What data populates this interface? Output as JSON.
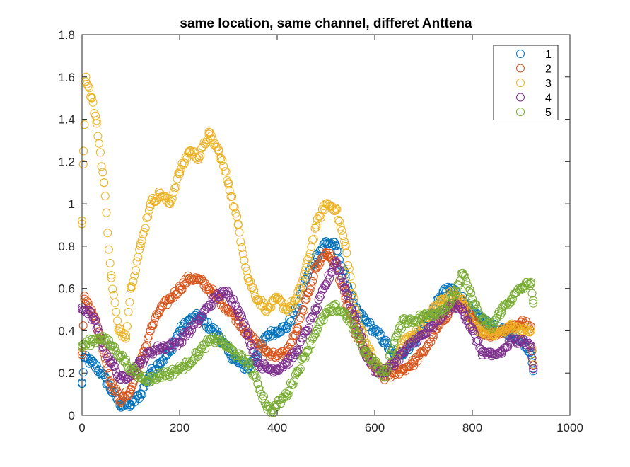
{
  "chart_data": {
    "type": "scatter",
    "title": "same location, same channel, differet Anttena",
    "xlabel": "",
    "ylabel": "",
    "xlim": [
      0,
      1000
    ],
    "ylim": [
      0,
      1.8
    ],
    "xticks": [
      0,
      200,
      400,
      600,
      800,
      1000
    ],
    "yticks": [
      0,
      0.2,
      0.4,
      0.6,
      0.8,
      1,
      1.2,
      1.4,
      1.6,
      1.8
    ],
    "xtick_labels": [
      "0",
      "200",
      "400",
      "600",
      "800",
      "1000"
    ],
    "ytick_labels": [
      "0",
      "0.2",
      "0.4",
      "0.6",
      "0.8",
      "1",
      "1.2",
      "1.4",
      "1.6",
      "1.8"
    ],
    "marker": "open-circle",
    "grid": false,
    "legend_position": "top-right",
    "series": [
      {
        "name": "1",
        "color": "#0072BD",
        "keypoints": [
          [
            0,
            0.15
          ],
          [
            5,
            0.27
          ],
          [
            20,
            0.25
          ],
          [
            40,
            0.2
          ],
          [
            60,
            0.12
          ],
          [
            80,
            0.05
          ],
          [
            100,
            0.05
          ],
          [
            120,
            0.1
          ],
          [
            140,
            0.2
          ],
          [
            160,
            0.25
          ],
          [
            180,
            0.3
          ],
          [
            200,
            0.4
          ],
          [
            220,
            0.45
          ],
          [
            240,
            0.47
          ],
          [
            260,
            0.42
          ],
          [
            280,
            0.38
          ],
          [
            300,
            0.3
          ],
          [
            320,
            0.25
          ],
          [
            340,
            0.22
          ],
          [
            360,
            0.3
          ],
          [
            380,
            0.38
          ],
          [
            400,
            0.4
          ],
          [
            420,
            0.42
          ],
          [
            440,
            0.5
          ],
          [
            460,
            0.65
          ],
          [
            480,
            0.75
          ],
          [
            500,
            0.82
          ],
          [
            520,
            0.8
          ],
          [
            540,
            0.65
          ],
          [
            560,
            0.5
          ],
          [
            580,
            0.45
          ],
          [
            600,
            0.4
          ],
          [
            620,
            0.35
          ],
          [
            640,
            0.28
          ],
          [
            660,
            0.3
          ],
          [
            680,
            0.35
          ],
          [
            700,
            0.42
          ],
          [
            720,
            0.5
          ],
          [
            740,
            0.58
          ],
          [
            760,
            0.6
          ],
          [
            780,
            0.55
          ],
          [
            800,
            0.48
          ],
          [
            820,
            0.45
          ],
          [
            840,
            0.42
          ],
          [
            860,
            0.4
          ],
          [
            880,
            0.38
          ],
          [
            900,
            0.36
          ],
          [
            920,
            0.3
          ],
          [
            925,
            0.21
          ]
        ]
      },
      {
        "name": "2",
        "color": "#D95319",
        "keypoints": [
          [
            0,
            0.3
          ],
          [
            5,
            0.55
          ],
          [
            20,
            0.5
          ],
          [
            40,
            0.35
          ],
          [
            60,
            0.15
          ],
          [
            80,
            0.07
          ],
          [
            100,
            0.12
          ],
          [
            120,
            0.25
          ],
          [
            140,
            0.4
          ],
          [
            160,
            0.5
          ],
          [
            180,
            0.55
          ],
          [
            200,
            0.6
          ],
          [
            220,
            0.65
          ],
          [
            240,
            0.64
          ],
          [
            260,
            0.6
          ],
          [
            280,
            0.55
          ],
          [
            300,
            0.5
          ],
          [
            320,
            0.45
          ],
          [
            340,
            0.38
          ],
          [
            360,
            0.34
          ],
          [
            380,
            0.3
          ],
          [
            400,
            0.28
          ],
          [
            420,
            0.3
          ],
          [
            440,
            0.4
          ],
          [
            460,
            0.55
          ],
          [
            480,
            0.7
          ],
          [
            500,
            0.77
          ],
          [
            520,
            0.72
          ],
          [
            540,
            0.55
          ],
          [
            560,
            0.4
          ],
          [
            580,
            0.3
          ],
          [
            600,
            0.22
          ],
          [
            620,
            0.18
          ],
          [
            640,
            0.2
          ],
          [
            660,
            0.22
          ],
          [
            680,
            0.25
          ],
          [
            700,
            0.3
          ],
          [
            720,
            0.38
          ],
          [
            740,
            0.45
          ],
          [
            760,
            0.52
          ],
          [
            780,
            0.52
          ],
          [
            800,
            0.45
          ],
          [
            820,
            0.4
          ],
          [
            840,
            0.38
          ],
          [
            860,
            0.4
          ],
          [
            880,
            0.42
          ],
          [
            900,
            0.44
          ],
          [
            920,
            0.42
          ],
          [
            925,
            0.22
          ]
        ]
      },
      {
        "name": "3",
        "color": "#EDB120",
        "keypoints": [
          [
            0,
            0.92
          ],
          [
            3,
            1.25
          ],
          [
            8,
            1.6
          ],
          [
            20,
            1.5
          ],
          [
            30,
            1.38
          ],
          [
            45,
            1.1
          ],
          [
            60,
            0.65
          ],
          [
            75,
            0.4
          ],
          [
            90,
            0.38
          ],
          [
            100,
            0.6
          ],
          [
            120,
            0.8
          ],
          [
            140,
            1.0
          ],
          [
            160,
            1.05
          ],
          [
            180,
            1.0
          ],
          [
            200,
            1.15
          ],
          [
            220,
            1.25
          ],
          [
            240,
            1.22
          ],
          [
            260,
            1.33
          ],
          [
            280,
            1.25
          ],
          [
            300,
            1.1
          ],
          [
            320,
            0.9
          ],
          [
            340,
            0.65
          ],
          [
            360,
            0.55
          ],
          [
            380,
            0.5
          ],
          [
            400,
            0.55
          ],
          [
            420,
            0.5
          ],
          [
            440,
            0.55
          ],
          [
            460,
            0.7
          ],
          [
            480,
            0.9
          ],
          [
            500,
            1.0
          ],
          [
            520,
            0.98
          ],
          [
            540,
            0.8
          ],
          [
            560,
            0.5
          ],
          [
            580,
            0.35
          ],
          [
            600,
            0.25
          ],
          [
            620,
            0.2
          ],
          [
            640,
            0.25
          ],
          [
            660,
            0.35
          ],
          [
            680,
            0.38
          ],
          [
            700,
            0.42
          ],
          [
            720,
            0.5
          ],
          [
            740,
            0.55
          ],
          [
            760,
            0.58
          ],
          [
            780,
            0.55
          ],
          [
            800,
            0.42
          ],
          [
            820,
            0.4
          ],
          [
            840,
            0.38
          ],
          [
            860,
            0.4
          ],
          [
            880,
            0.42
          ],
          [
            900,
            0.4
          ],
          [
            920,
            0.4
          ],
          [
            925,
            0.24
          ]
        ]
      },
      {
        "name": "4",
        "color": "#7E2F8E",
        "keypoints": [
          [
            0,
            0.5
          ],
          [
            10,
            0.5
          ],
          [
            25,
            0.45
          ],
          [
            40,
            0.35
          ],
          [
            60,
            0.25
          ],
          [
            80,
            0.17
          ],
          [
            100,
            0.2
          ],
          [
            120,
            0.25
          ],
          [
            140,
            0.3
          ],
          [
            160,
            0.32
          ],
          [
            180,
            0.33
          ],
          [
            200,
            0.35
          ],
          [
            220,
            0.4
          ],
          [
            240,
            0.45
          ],
          [
            260,
            0.52
          ],
          [
            280,
            0.57
          ],
          [
            300,
            0.58
          ],
          [
            320,
            0.5
          ],
          [
            340,
            0.38
          ],
          [
            360,
            0.25
          ],
          [
            380,
            0.22
          ],
          [
            400,
            0.22
          ],
          [
            420,
            0.25
          ],
          [
            440,
            0.3
          ],
          [
            460,
            0.4
          ],
          [
            480,
            0.5
          ],
          [
            500,
            0.62
          ],
          [
            520,
            0.73
          ],
          [
            540,
            0.6
          ],
          [
            560,
            0.45
          ],
          [
            580,
            0.3
          ],
          [
            600,
            0.22
          ],
          [
            620,
            0.2
          ],
          [
            640,
            0.25
          ],
          [
            660,
            0.3
          ],
          [
            680,
            0.35
          ],
          [
            700,
            0.38
          ],
          [
            720,
            0.42
          ],
          [
            740,
            0.48
          ],
          [
            760,
            0.52
          ],
          [
            780,
            0.5
          ],
          [
            800,
            0.4
          ],
          [
            820,
            0.3
          ],
          [
            840,
            0.28
          ],
          [
            860,
            0.3
          ],
          [
            880,
            0.35
          ],
          [
            900,
            0.36
          ],
          [
            920,
            0.33
          ],
          [
            925,
            0.22
          ]
        ]
      },
      {
        "name": "5",
        "color": "#77AC30",
        "keypoints": [
          [
            0,
            0.33
          ],
          [
            20,
            0.35
          ],
          [
            40,
            0.37
          ],
          [
            60,
            0.33
          ],
          [
            80,
            0.28
          ],
          [
            100,
            0.22
          ],
          [
            120,
            0.18
          ],
          [
            140,
            0.17
          ],
          [
            160,
            0.19
          ],
          [
            180,
            0.2
          ],
          [
            200,
            0.22
          ],
          [
            220,
            0.25
          ],
          [
            240,
            0.3
          ],
          [
            260,
            0.35
          ],
          [
            280,
            0.36
          ],
          [
            300,
            0.32
          ],
          [
            320,
            0.28
          ],
          [
            340,
            0.25
          ],
          [
            360,
            0.15
          ],
          [
            380,
            0.04
          ],
          [
            390,
            0.02
          ],
          [
            400,
            0.05
          ],
          [
            420,
            0.1
          ],
          [
            440,
            0.2
          ],
          [
            460,
            0.3
          ],
          [
            480,
            0.4
          ],
          [
            500,
            0.48
          ],
          [
            520,
            0.51
          ],
          [
            540,
            0.48
          ],
          [
            560,
            0.4
          ],
          [
            580,
            0.3
          ],
          [
            600,
            0.25
          ],
          [
            620,
            0.18
          ],
          [
            640,
            0.35
          ],
          [
            660,
            0.45
          ],
          [
            680,
            0.45
          ],
          [
            700,
            0.47
          ],
          [
            720,
            0.48
          ],
          [
            740,
            0.5
          ],
          [
            760,
            0.55
          ],
          [
            780,
            0.67
          ],
          [
            800,
            0.55
          ],
          [
            820,
            0.45
          ],
          [
            840,
            0.42
          ],
          [
            860,
            0.5
          ],
          [
            880,
            0.55
          ],
          [
            900,
            0.6
          ],
          [
            920,
            0.63
          ],
          [
            925,
            0.53
          ]
        ]
      }
    ]
  }
}
